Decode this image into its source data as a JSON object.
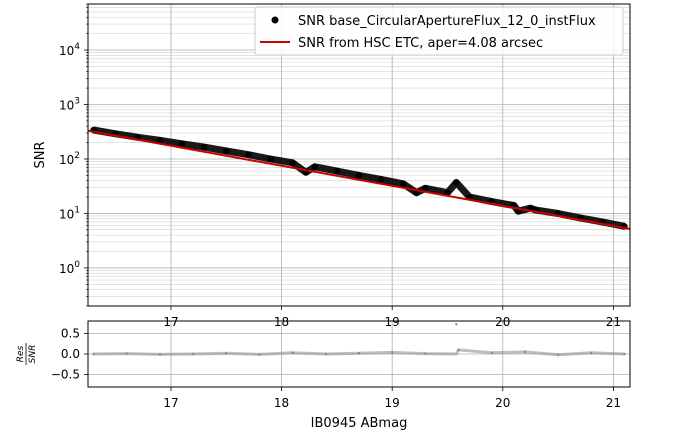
{
  "chart_data": [
    {
      "type": "scatter",
      "panel": "main",
      "xlabel": "",
      "ylabel": "SNR",
      "xlim": [
        16.25,
        21.15
      ],
      "ylim": [
        0.2,
        70000
      ],
      "yscale": "log",
      "grid": "on (major and minor)",
      "legend_placement": "top-right",
      "x_ticks": [
        "17",
        "18",
        "19",
        "20",
        "21"
      ],
      "y_ticks": [
        {
          "value": 1,
          "label": "10^0"
        },
        {
          "value": 10,
          "label": "10^1"
        },
        {
          "value": 100,
          "label": "10^2"
        },
        {
          "value": 1000,
          "label": "10^3"
        },
        {
          "value": 10000,
          "label": "10^4"
        }
      ],
      "series": [
        {
          "name": "SNR base_CircularApertureFlux_12_0_instFlux",
          "kind": "points",
          "color": "#000000",
          "x": [
            16.3,
            16.5,
            16.7,
            16.9,
            17.1,
            17.3,
            17.5,
            17.7,
            17.9,
            18.1,
            18.22,
            18.3,
            18.5,
            18.7,
            18.9,
            19.1,
            19.22,
            19.3,
            19.5,
            19.58,
            19.7,
            19.9,
            20.1,
            20.14,
            20.25,
            20.3,
            20.5,
            20.7,
            20.9,
            21.1
          ],
          "y": [
            340,
            290,
            250,
            220,
            190,
            165,
            140,
            120,
            100,
            85,
            57,
            72,
            60,
            50,
            42,
            35,
            24,
            29,
            24,
            37,
            20,
            16.5,
            14,
            11,
            12.5,
            11.5,
            10,
            8.3,
            7,
            5.8
          ]
        },
        {
          "name": "SNR from HSC ETC, aper=4.08 arcsec",
          "kind": "line",
          "color": "#cc0000",
          "x": [
            16.25,
            21.15
          ],
          "y": [
            330,
            5.2
          ]
        }
      ]
    },
    {
      "type": "scatter",
      "panel": "residual",
      "xlabel": "IB0945 ABmag",
      "ylabel": "Res/SNR",
      "ylabel_parts": {
        "numerator": "Res",
        "denominator": "SNR"
      },
      "xlim": [
        16.25,
        21.15
      ],
      "ylim": [
        -0.8,
        0.8
      ],
      "grid": "on",
      "x_ticks": [
        "17",
        "18",
        "19",
        "20",
        "21"
      ],
      "y_ticks": [
        "0.5",
        "0.0",
        "−0.5"
      ],
      "series": [
        {
          "name": "",
          "color": "#888888",
          "x": [
            16.3,
            16.6,
            16.9,
            17.2,
            17.5,
            17.8,
            18.1,
            18.4,
            18.7,
            19.0,
            19.3,
            19.58,
            19.6,
            19.9,
            20.2,
            20.5,
            20.8,
            21.1
          ],
          "y": [
            0.0,
            0.01,
            -0.01,
            0.0,
            0.02,
            -0.01,
            0.03,
            0.0,
            0.02,
            0.04,
            0.01,
            0.72,
            0.1,
            0.03,
            0.05,
            -0.02,
            0.03,
            0.0
          ]
        }
      ]
    }
  ]
}
